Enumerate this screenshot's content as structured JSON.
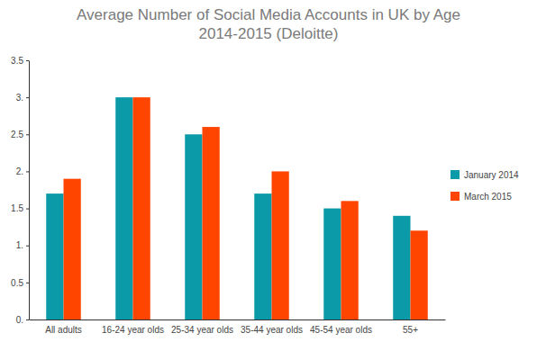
{
  "chart_data": {
    "type": "bar",
    "title": "Average Number of Social Media Accounts in UK by Age\n2014-2015 (Deloitte)",
    "categories": [
      "All adults",
      "16-24 year olds",
      "25-34 year olds",
      "35-44 year olds",
      "45-54 year olds",
      "55+"
    ],
    "series": [
      {
        "name": "January 2014",
        "color": "#0a9aa8",
        "values": [
          1.7,
          3.0,
          2.5,
          1.7,
          1.5,
          1.4
        ]
      },
      {
        "name": "March 2015",
        "color": "#ff4500",
        "values": [
          1.9,
          3.0,
          2.6,
          2.0,
          1.6,
          1.2
        ]
      }
    ],
    "ylim": [
      0,
      3.5
    ],
    "yticks": [
      {
        "value": 0,
        "label": "0."
      },
      0.5,
      {
        "value": 1,
        "label": "1."
      },
      1.5,
      {
        "value": 2,
        "label": "2."
      },
      2.5,
      {
        "value": 3,
        "label": "3."
      },
      3.5
    ],
    "grid": false,
    "legend": "right"
  }
}
